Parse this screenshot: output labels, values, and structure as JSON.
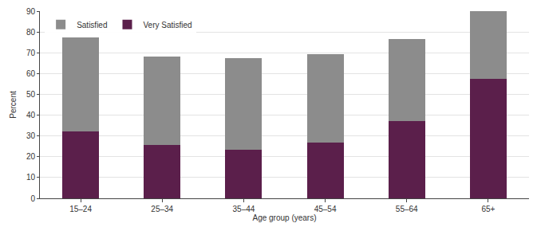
{
  "chart_data": {
    "type": "bar",
    "stacked": true,
    "x_label": "Age group (years)",
    "y_label": "Percent",
    "categories": [
      "15–24",
      "25–34",
      "35–44",
      "45–54",
      "55–64",
      "65+"
    ],
    "series": [
      {
        "name": "Very Satisfied",
        "color": "#5b1f4b",
        "values": [
          32,
          25.5,
          23.5,
          27,
          37,
          57.5
        ]
      },
      {
        "name": "Satisfied",
        "color": "#8c8c8c",
        "values": [
          45.5,
          42.5,
          44,
          42.5,
          39.5,
          32.5
        ]
      }
    ],
    "ylim": [
      0,
      90
    ],
    "yticks": [
      0,
      10,
      20,
      30,
      40,
      50,
      60,
      70,
      80,
      90
    ],
    "grid": true,
    "legend": "top-left"
  }
}
